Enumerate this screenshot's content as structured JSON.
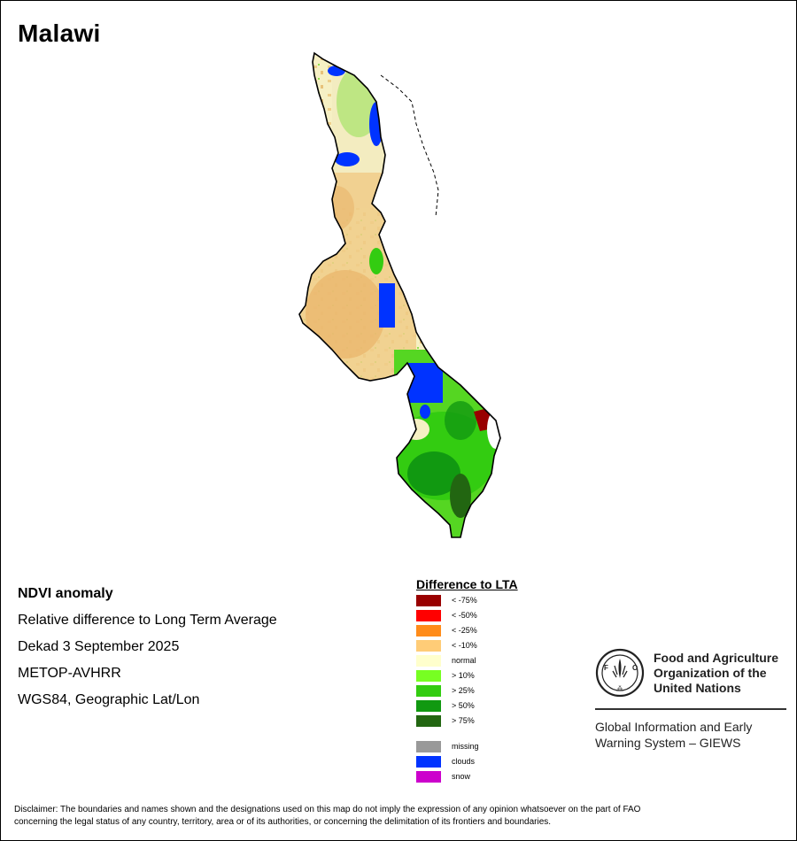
{
  "title": "Malawi",
  "info": {
    "heading": "NDVI anomaly",
    "line1": "Relative difference to Long Term Average",
    "line2": "Dekad 3 September 2025",
    "line3": "METOP-AVHRR",
    "line4": "WGS84, Geographic Lat/Lon"
  },
  "legend": {
    "title": "Difference to LTA",
    "items": [
      {
        "label": "< -75%",
        "color": "#990000"
      },
      {
        "label": "< -50%",
        "color": "#ff0000"
      },
      {
        "label": "< -25%",
        "color": "#ff8c1a"
      },
      {
        "label": "< -10%",
        "color": "#ffcc77"
      },
      {
        "label": "normal",
        "color": "#ffffcc"
      },
      {
        "label": "> 10%",
        "color": "#77ff22"
      },
      {
        "label": "> 25%",
        "color": "#33cc11"
      },
      {
        "label": "> 50%",
        "color": "#119911"
      },
      {
        "label": "> 75%",
        "color": "#226611"
      }
    ],
    "extra": [
      {
        "label": "missing",
        "color": "#999999"
      },
      {
        "label": "clouds",
        "color": "#0033ff"
      },
      {
        "label": "snow",
        "color": "#cc00cc"
      }
    ]
  },
  "fao": {
    "org_line1": "Food and Agriculture",
    "org_line2": "Organization of the",
    "org_line3": "United Nations",
    "giews_line1": "Global Information and Early",
    "giews_line2": "Warning System – GIEWS",
    "logo_top": "FAO",
    "logo_bottom": "FIAT PANIS"
  },
  "disclaimer_line1": "Disclaimer: The boundaries and names shown and the designations used on this map do not imply the expression of any opinion whatsoever on the part of FAO",
  "disclaimer_line2": "concerning the legal status of any country, territory, area or of its authorities, or concerning the delimitation of its frontiers and boundaries."
}
